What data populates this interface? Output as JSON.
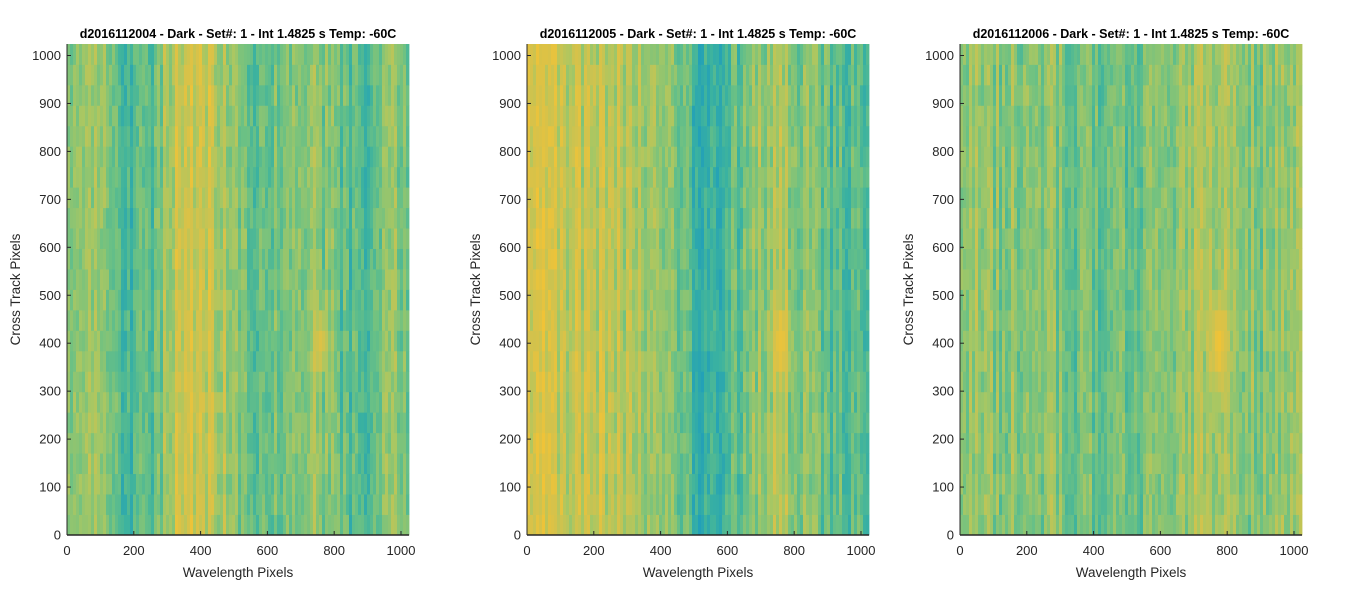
{
  "figure": {
    "colormap": [
      "#22a0b8",
      "#3bb2a0",
      "#6cc184",
      "#a8c763",
      "#d6c24a",
      "#f0c337"
    ]
  },
  "chart_data": [
    {
      "type": "heatmap",
      "title": "d2016112004 - Dark - Set#: 1 - Int 1.4825 s Temp: -60C",
      "xlabel": "Wavelength Pixels",
      "ylabel": "Cross Track Pixels",
      "xlim": [
        0,
        1024
      ],
      "ylim": [
        0,
        1024
      ],
      "xticks": [
        0,
        200,
        400,
        600,
        800,
        1000
      ],
      "yticks": [
        0,
        100,
        200,
        300,
        400,
        500,
        600,
        700,
        800,
        900,
        1000
      ],
      "column_profile": {
        "x": [
          0,
          40,
          80,
          120,
          160,
          200,
          240,
          280,
          320,
          360,
          400,
          440,
          480,
          520,
          560,
          600,
          640,
          680,
          720,
          760,
          800,
          840,
          880,
          920,
          960,
          1000,
          1024
        ],
        "level": [
          0.45,
          0.5,
          0.48,
          0.4,
          0.3,
          0.28,
          0.32,
          0.5,
          0.68,
          0.78,
          0.8,
          0.72,
          0.55,
          0.45,
          0.4,
          0.38,
          0.4,
          0.45,
          0.5,
          0.52,
          0.42,
          0.3,
          0.28,
          0.38,
          0.45,
          0.48,
          0.5
        ]
      },
      "hotspots": [
        {
          "x": 760,
          "y": 400,
          "rx": 20,
          "ry": 60,
          "level": 0.85
        }
      ]
    },
    {
      "type": "heatmap",
      "title": "d2016112005 - Dark - Set#: 1 - Int 1.4825 s Temp: -60C",
      "xlabel": "Wavelength Pixels",
      "ylabel": "Cross Track Pixels",
      "xlim": [
        0,
        1024
      ],
      "ylim": [
        0,
        1024
      ],
      "xticks": [
        0,
        200,
        400,
        600,
        800,
        1000
      ],
      "yticks": [
        0,
        100,
        200,
        300,
        400,
        500,
        600,
        700,
        800,
        900,
        1000
      ],
      "column_profile": {
        "x": [
          0,
          40,
          80,
          120,
          160,
          200,
          240,
          280,
          320,
          360,
          400,
          440,
          480,
          520,
          560,
          600,
          640,
          680,
          720,
          760,
          800,
          840,
          880,
          920,
          960,
          1000,
          1024
        ],
        "level": [
          0.85,
          0.8,
          0.72,
          0.68,
          0.7,
          0.72,
          0.7,
          0.65,
          0.6,
          0.58,
          0.55,
          0.45,
          0.3,
          0.22,
          0.2,
          0.25,
          0.35,
          0.48,
          0.58,
          0.62,
          0.55,
          0.45,
          0.38,
          0.32,
          0.3,
          0.3,
          0.32
        ]
      },
      "hotspots": [
        {
          "x": 760,
          "y": 400,
          "rx": 22,
          "ry": 70,
          "level": 0.95
        }
      ]
    },
    {
      "type": "heatmap",
      "title": "d2016112006 - Dark - Set#: 1 - Int 1.4825 s Temp: -60C",
      "xlabel": "Wavelength Pixels",
      "ylabel": "Cross Track Pixels",
      "xlim": [
        0,
        1024
      ],
      "ylim": [
        0,
        1024
      ],
      "xticks": [
        0,
        200,
        400,
        600,
        800,
        1000
      ],
      "yticks": [
        0,
        100,
        200,
        300,
        400,
        500,
        600,
        700,
        800,
        900,
        1000
      ],
      "column_profile": {
        "x": [
          0,
          40,
          80,
          120,
          160,
          200,
          240,
          280,
          320,
          360,
          400,
          440,
          480,
          520,
          560,
          600,
          640,
          680,
          720,
          760,
          800,
          840,
          880,
          920,
          960,
          1000,
          1024
        ],
        "level": [
          0.55,
          0.55,
          0.5,
          0.48,
          0.5,
          0.52,
          0.5,
          0.48,
          0.45,
          0.42,
          0.4,
          0.38,
          0.4,
          0.42,
          0.45,
          0.5,
          0.52,
          0.55,
          0.58,
          0.6,
          0.55,
          0.5,
          0.48,
          0.5,
          0.52,
          0.55,
          0.55
        ]
      },
      "hotspots": [
        {
          "x": 775,
          "y": 400,
          "rx": 22,
          "ry": 80,
          "level": 1.0
        }
      ]
    }
  ]
}
